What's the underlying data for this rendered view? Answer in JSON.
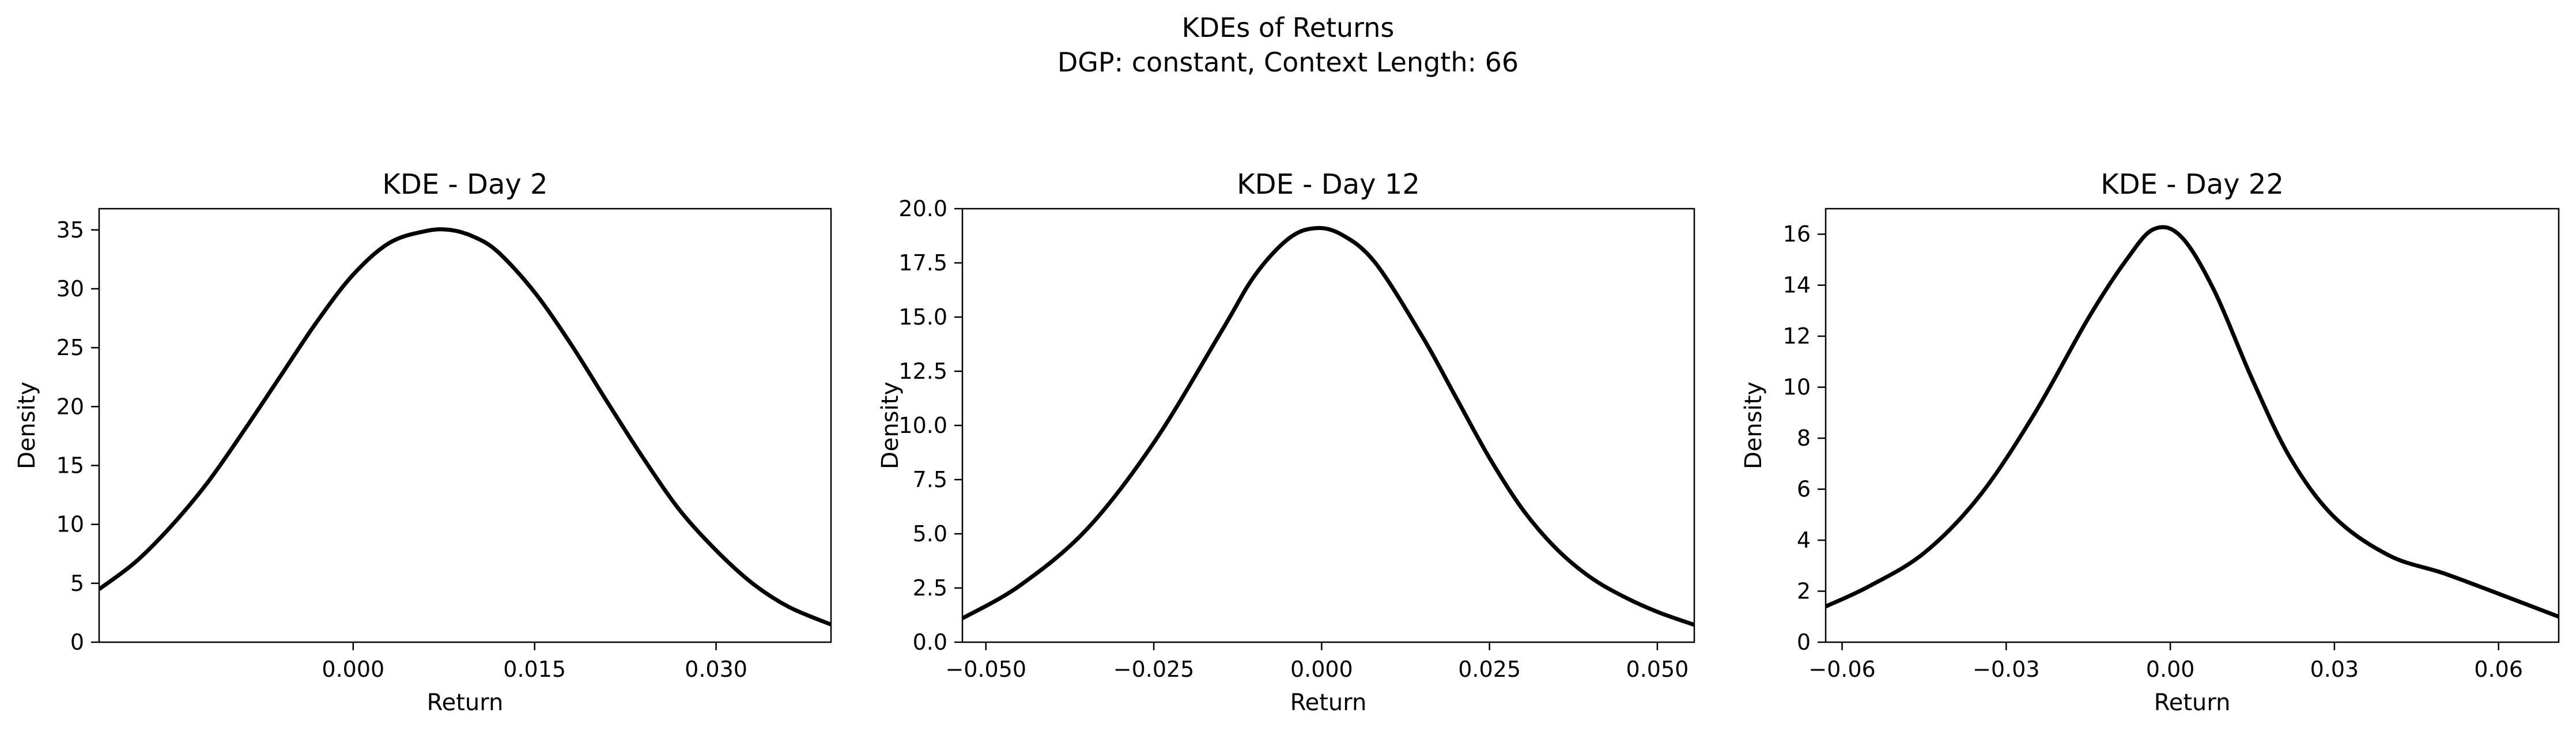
{
  "figure": {
    "title_line1": "KDEs of Returns",
    "title_line2": "DGP: constant, Context Length: 66"
  },
  "chart_data": [
    {
      "type": "line",
      "title": "KDE - Day 2",
      "xlabel": "Return",
      "ylabel": "Density",
      "xlim": [
        -0.021,
        0.0395
      ],
      "ylim": [
        0,
        36.8
      ],
      "xticks": [
        0.0,
        0.015,
        0.03
      ],
      "xtick_labels": [
        "0.000",
        "0.015",
        "0.030"
      ],
      "yticks": [
        0,
        5,
        10,
        15,
        20,
        25,
        30,
        35
      ],
      "ytick_labels": [
        "0",
        "5",
        "10",
        "15",
        "20",
        "25",
        "30",
        "35"
      ],
      "line_color": "#000000",
      "series": [
        {
          "x": [
            -0.021,
            -0.018,
            -0.015,
            -0.012,
            -0.009,
            -0.006,
            -0.003,
            0.0,
            0.003,
            0.006,
            0.008,
            0.01,
            0.012,
            0.015,
            0.018,
            0.021,
            0.024,
            0.027,
            0.03,
            0.033,
            0.036,
            0.0395
          ],
          "y": [
            4.5,
            6.8,
            9.9,
            13.6,
            18.0,
            22.6,
            27.2,
            31.2,
            33.9,
            34.9,
            35.0,
            34.4,
            33.1,
            29.7,
            25.3,
            20.4,
            15.6,
            11.2,
            7.8,
            5.0,
            3.0,
            1.5
          ]
        }
      ]
    },
    {
      "type": "line",
      "title": "KDE - Day 12",
      "xlabel": "Return",
      "ylabel": "Density",
      "xlim": [
        -0.0535,
        0.0555
      ],
      "ylim": [
        0,
        20.0
      ],
      "xticks": [
        -0.05,
        -0.025,
        0.0,
        0.025,
        0.05
      ],
      "xtick_labels": [
        "−0.050",
        "−0.025",
        "0.000",
        "0.025",
        "0.050"
      ],
      "yticks": [
        0,
        2.5,
        5,
        7.5,
        10,
        12.5,
        15,
        17.5,
        20
      ],
      "ytick_labels": [
        "0.0",
        "2.5",
        "5.0",
        "7.5",
        "10.0",
        "12.5",
        "15.0",
        "17.5",
        "20.0"
      ],
      "line_color": "#000000",
      "series": [
        {
          "x": [
            -0.0535,
            -0.045,
            -0.035,
            -0.025,
            -0.015,
            -0.01,
            -0.005,
            -0.001,
            0.003,
            0.008,
            0.015,
            0.02,
            0.025,
            0.03,
            0.035,
            0.04,
            0.045,
            0.05,
            0.0555
          ],
          "y": [
            1.1,
            2.6,
            5.2,
            9.2,
            14.3,
            16.9,
            18.6,
            19.1,
            18.8,
            17.5,
            14.1,
            11.3,
            8.5,
            6.1,
            4.3,
            3.0,
            2.1,
            1.4,
            0.8
          ]
        }
      ]
    },
    {
      "type": "line",
      "title": "KDE - Day 22",
      "xlabel": "Return",
      "ylabel": "Density",
      "xlim": [
        -0.063,
        0.071
      ],
      "ylim": [
        0,
        17
      ],
      "xticks": [
        -0.06,
        -0.03,
        0.0,
        0.03,
        0.06
      ],
      "xtick_labels": [
        "−0.06",
        "−0.03",
        "0.00",
        "0.03",
        "0.06"
      ],
      "yticks": [
        0,
        2,
        4,
        6,
        8,
        10,
        12,
        14,
        16
      ],
      "ytick_labels": [
        "0",
        "2",
        "4",
        "6",
        "8",
        "10",
        "12",
        "14",
        "16"
      ],
      "line_color": "#000000",
      "series": [
        {
          "x": [
            -0.063,
            -0.055,
            -0.045,
            -0.035,
            -0.025,
            -0.015,
            -0.008,
            -0.003,
            0.002,
            0.008,
            0.015,
            0.022,
            0.03,
            0.04,
            0.05,
            0.06,
            0.071
          ],
          "y": [
            1.4,
            2.2,
            3.5,
            5.7,
            8.9,
            12.7,
            15.0,
            16.2,
            15.9,
            13.8,
            10.3,
            7.2,
            4.9,
            3.4,
            2.7,
            1.9,
            1.0
          ]
        }
      ]
    }
  ]
}
